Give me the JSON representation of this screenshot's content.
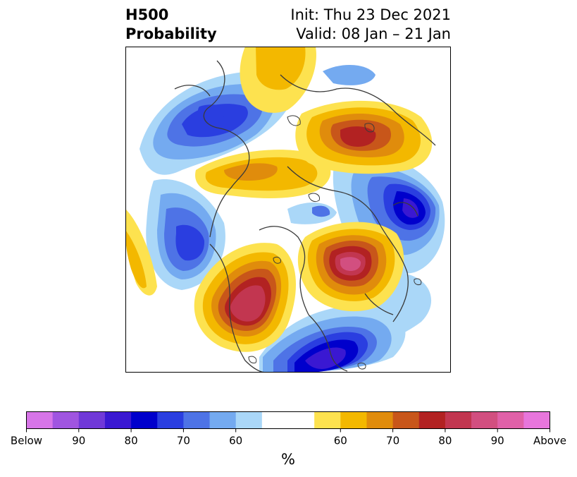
{
  "title": {
    "variable": "H500",
    "subtitle": "Probability",
    "init": "Init: Thu 23 Dec 2021",
    "valid": "Valid: 08 Jan – 21 Jan"
  },
  "colorbar": {
    "unit": "%",
    "colors": [
      "#d775e8",
      "#a055e0",
      "#7039d8",
      "#3a18d2",
      "#0000cc",
      "#2a3ee0",
      "#4e73e6",
      "#74aaf0",
      "#aad7f8",
      "#ffffff",
      "#ffffff",
      "#fde24f",
      "#f3b800",
      "#e08c0c",
      "#c8561a",
      "#b22222",
      "#c23650",
      "#d24f80",
      "#e061a8",
      "#e876dc"
    ],
    "tick_labels": [
      "Below",
      "90",
      "80",
      "70",
      "60",
      "60",
      "70",
      "80",
      "90",
      "Above"
    ]
  },
  "map": {
    "projection": "north-polar-stereographic",
    "anomalies": [
      {
        "sign": "above",
        "peak": 80,
        "region": "western-siberia"
      },
      {
        "sign": "above",
        "peak": 60,
        "region": "canadian-arctic"
      },
      {
        "sign": "above",
        "peak": 60,
        "region": "pacific-edge"
      },
      {
        "sign": "above",
        "peak": 90,
        "region": "north-atlantic-europe"
      },
      {
        "sign": "above",
        "peak": 90,
        "region": "western-north-america"
      },
      {
        "sign": "below",
        "peak": 80,
        "region": "central-siberia"
      },
      {
        "sign": "below",
        "peak": 80,
        "region": "north-pacific"
      },
      {
        "sign": "below",
        "peak": 80,
        "region": "eastern-north-america"
      },
      {
        "sign": "below",
        "peak": 80,
        "region": "central-asia"
      },
      {
        "sign": "below",
        "peak": 60,
        "region": "arctic-ocean"
      }
    ]
  }
}
